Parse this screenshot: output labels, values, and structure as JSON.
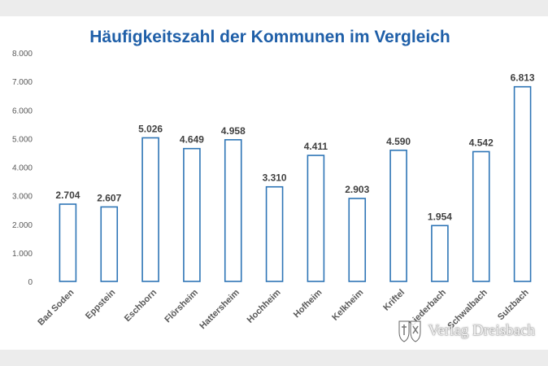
{
  "chart_data": {
    "type": "bar",
    "title": "Häufigkeitszahl der Kommunen im Vergleich",
    "xlabel": "",
    "ylabel": "",
    "categories": [
      "Bad Soden",
      "Eppstein",
      "Eschborn",
      "Flörsheim",
      "Hattersheim",
      "Hochheim",
      "Hofheim",
      "Kelkheim",
      "Kriftel",
      "Liederbach",
      "Schwalbach",
      "Sulzbach"
    ],
    "values": [
      2704,
      2607,
      5026,
      4649,
      4958,
      3310,
      4411,
      2903,
      4590,
      1954,
      4542,
      6813
    ],
    "value_labels": [
      "2.704",
      "2.607",
      "5.026",
      "4.649",
      "4.958",
      "3.310",
      "4.411",
      "2.903",
      "4.590",
      "1.954",
      "4.542",
      "6.813"
    ],
    "ylim": [
      0,
      8000
    ],
    "yticks": [
      0,
      1000,
      2000,
      3000,
      4000,
      5000,
      6000,
      7000,
      8000
    ],
    "ytick_labels": [
      "0",
      "1.000",
      "2.000",
      "3.000",
      "4.000",
      "5.000",
      "6.000",
      "7.000",
      "8.000"
    ],
    "grid": false,
    "legend": "none",
    "colors": {
      "bar_fill": "#ffffff",
      "bar_stroke": "#2e75b6",
      "title": "#1f5fa8"
    }
  },
  "watermark": {
    "text": "Verlag Dreisbach",
    "logo": "coat-of-arms-icon"
  }
}
